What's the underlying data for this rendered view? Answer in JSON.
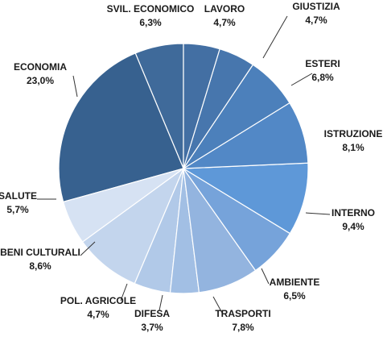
{
  "chart_data": {
    "type": "pie",
    "title": "",
    "legend": "none",
    "start_angle_deg": -90,
    "direction": "counterclockwise",
    "slices": [
      {
        "label": "SVIL. ECONOMICO",
        "value": 6.3,
        "value_text": "6,3%",
        "color": "#3f6a9a"
      },
      {
        "label": "ECONOMIA",
        "value": 23.0,
        "value_text": "23,0%",
        "color": "#37618f"
      },
      {
        "label": "SALUTE",
        "value": 5.7,
        "value_text": "5,7%",
        "color": "#d6e2f3"
      },
      {
        "label": "BENI CULTURALI",
        "value": 8.6,
        "value_text": "8,6%",
        "color": "#c3d5ed"
      },
      {
        "label": "POL. AGRICOLE",
        "value": 4.7,
        "value_text": "4,7%",
        "color": "#b1c9e8"
      },
      {
        "label": "DIFESA",
        "value": 3.7,
        "value_text": "3,7%",
        "color": "#a2bfe4"
      },
      {
        "label": "TRASPORTI",
        "value": 7.8,
        "value_text": "7,8%",
        "color": "#93b4df"
      },
      {
        "label": "AMBIENTE",
        "value": 6.5,
        "value_text": "6,5%",
        "color": "#76a3da"
      },
      {
        "label": "INTERNO",
        "value": 9.4,
        "value_text": "9,4%",
        "color": "#5e98d8"
      },
      {
        "label": "ISTRUZIONE",
        "value": 8.1,
        "value_text": "8,1%",
        "color": "#5288c6"
      },
      {
        "label": "ESTERI",
        "value": 6.8,
        "value_text": "6,8%",
        "color": "#4c80bb"
      },
      {
        "label": "GIUSTIZIA",
        "value": 4.7,
        "value_text": "4,7%",
        "color": "#4776ad"
      },
      {
        "label": "LAVORO",
        "value": 4.7,
        "value_text": "4,7%",
        "color": "#436fa3"
      }
    ]
  }
}
